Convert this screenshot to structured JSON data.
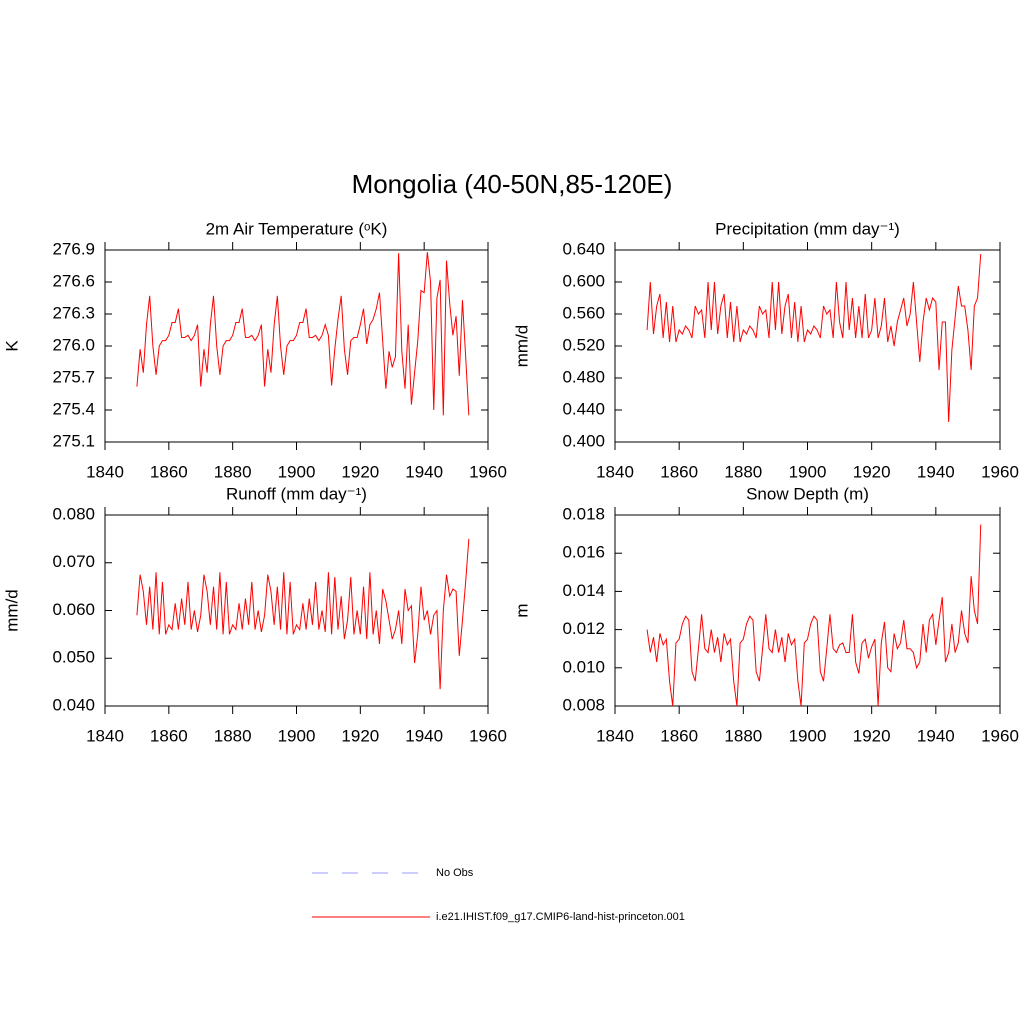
{
  "title": "Mongolia (40-50N,85-120E)",
  "legend": [
    {
      "name": "No Obs",
      "color": "#9999ff",
      "dash": true
    },
    {
      "name": "i.e21.IHIST.f09_g17.CMIP6-land-hist-princeton.001",
      "color": "#ff0000",
      "dash": false
    }
  ],
  "chart_data": [
    {
      "type": "line",
      "title": "2m Air Temperature (ᵒK)",
      "y_label": "K",
      "color": "#ff0000",
      "x": [
        1850,
        1851,
        1852,
        1853,
        1854,
        1855,
        1856,
        1857,
        1858,
        1859,
        1860,
        1861,
        1862,
        1863,
        1864,
        1865,
        1866,
        1867,
        1868,
        1869,
        1870,
        1871,
        1872,
        1873,
        1874,
        1875,
        1876,
        1877,
        1878,
        1879,
        1880,
        1881,
        1882,
        1883,
        1884,
        1885,
        1886,
        1887,
        1888,
        1889,
        1890,
        1891,
        1892,
        1893,
        1894,
        1895,
        1896,
        1897,
        1898,
        1899,
        1900,
        1901,
        1902,
        1903,
        1904,
        1905,
        1906,
        1907,
        1908,
        1909,
        1910,
        1911,
        1912,
        1913,
        1914,
        1915,
        1916,
        1917,
        1918,
        1919,
        1920,
        1921,
        1922,
        1923,
        1924,
        1925,
        1926,
        1927,
        1928,
        1929,
        1930,
        1931,
        1932,
        1933,
        1934,
        1935,
        1936,
        1937,
        1938,
        1939,
        1940,
        1941,
        1942,
        1943,
        1944,
        1945,
        1946,
        1947,
        1948,
        1949,
        1950,
        1951,
        1952,
        1953,
        1954
      ],
      "values": [
        275.62,
        275.97,
        275.75,
        276.2,
        276.47,
        276.0,
        275.73,
        276.0,
        276.05,
        276.05,
        276.1,
        276.22,
        276.22,
        276.35,
        276.08,
        276.08,
        276.1,
        276.05,
        276.1,
        276.2,
        275.62,
        275.97,
        275.75,
        276.2,
        276.47,
        276.0,
        275.73,
        276.0,
        276.05,
        276.05,
        276.1,
        276.22,
        276.22,
        276.35,
        276.08,
        276.08,
        276.1,
        276.05,
        276.1,
        276.2,
        275.62,
        275.97,
        275.75,
        276.2,
        276.47,
        276.0,
        275.73,
        276.0,
        276.05,
        276.05,
        276.1,
        276.22,
        276.22,
        276.35,
        276.08,
        276.08,
        276.1,
        276.05,
        276.1,
        276.2,
        276.1,
        275.63,
        275.97,
        276.25,
        276.47,
        275.97,
        275.73,
        276.05,
        276.08,
        276.08,
        276.2,
        276.35,
        276.02,
        276.2,
        276.25,
        276.35,
        276.5,
        276.05,
        275.6,
        275.95,
        275.8,
        275.9,
        276.87,
        275.95,
        275.6,
        276.2,
        275.45,
        275.75,
        276.05,
        276.52,
        276.5,
        276.88,
        276.6,
        275.4,
        276.45,
        276.62,
        275.35,
        276.8,
        276.4,
        276.1,
        276.28,
        275.72,
        276.43,
        275.9,
        275.35
      ],
      "xlim": [
        1840,
        1960
      ],
      "xticks": [
        1840,
        1860,
        1880,
        1900,
        1920,
        1940,
        1960
      ],
      "ylim": [
        275.1,
        276.9
      ],
      "yticks": [
        275.1,
        275.4,
        275.7,
        {
          "value": 276.0,
          "label": "276.0"
        },
        276.3,
        276.6,
        276.9
      ]
    },
    {
      "type": "line",
      "title": "Precipitation (mm day⁻¹)",
      "y_label": "mm/d",
      "color": "#ff0000",
      "x": [
        1850,
        1851,
        1852,
        1853,
        1854,
        1855,
        1856,
        1857,
        1858,
        1859,
        1860,
        1861,
        1862,
        1863,
        1864,
        1865,
        1866,
        1867,
        1868,
        1869,
        1870,
        1871,
        1872,
        1873,
        1874,
        1875,
        1876,
        1877,
        1878,
        1879,
        1880,
        1881,
        1882,
        1883,
        1884,
        1885,
        1886,
        1887,
        1888,
        1889,
        1890,
        1891,
        1892,
        1893,
        1894,
        1895,
        1896,
        1897,
        1898,
        1899,
        1900,
        1901,
        1902,
        1903,
        1904,
        1905,
        1906,
        1907,
        1908,
        1909,
        1910,
        1911,
        1912,
        1913,
        1914,
        1915,
        1916,
        1917,
        1918,
        1919,
        1920,
        1921,
        1922,
        1923,
        1924,
        1925,
        1926,
        1927,
        1928,
        1929,
        1930,
        1931,
        1932,
        1933,
        1934,
        1935,
        1936,
        1937,
        1938,
        1939,
        1940,
        1941,
        1942,
        1943,
        1944,
        1945,
        1946,
        1947,
        1948,
        1949,
        1950,
        1951,
        1952,
        1953,
        1954
      ],
      "values": [
        0.54,
        0.6,
        0.535,
        0.57,
        0.585,
        0.53,
        0.575,
        0.525,
        0.57,
        0.525,
        0.54,
        0.535,
        0.545,
        0.54,
        0.53,
        0.57,
        0.56,
        0.565,
        0.53,
        0.6,
        0.54,
        0.6,
        0.535,
        0.57,
        0.585,
        0.53,
        0.575,
        0.525,
        0.57,
        0.525,
        0.54,
        0.535,
        0.545,
        0.54,
        0.53,
        0.57,
        0.56,
        0.565,
        0.53,
        0.6,
        0.54,
        0.6,
        0.535,
        0.57,
        0.585,
        0.53,
        0.575,
        0.525,
        0.57,
        0.525,
        0.54,
        0.535,
        0.545,
        0.54,
        0.53,
        0.57,
        0.56,
        0.565,
        0.53,
        0.6,
        0.55,
        0.53,
        0.6,
        0.54,
        0.58,
        0.53,
        0.57,
        0.53,
        0.585,
        0.53,
        0.54,
        0.58,
        0.53,
        0.545,
        0.58,
        0.525,
        0.545,
        0.52,
        0.55,
        0.565,
        0.58,
        0.545,
        0.56,
        0.6,
        0.55,
        0.5,
        0.55,
        0.58,
        0.565,
        0.58,
        0.575,
        0.49,
        0.55,
        0.55,
        0.425,
        0.515,
        0.555,
        0.595,
        0.57,
        0.57,
        0.54,
        0.49,
        0.57,
        0.58,
        0.635
      ],
      "xlim": [
        1840,
        1960
      ],
      "xticks": [
        1840,
        1860,
        1880,
        1900,
        1920,
        1940,
        1960
      ],
      "ylim": [
        0.4,
        0.64
      ],
      "yticks": [
        {
          "value": 0.4,
          "label": "0.400"
        },
        {
          "value": 0.44,
          "label": "0.440"
        },
        {
          "value": 0.48,
          "label": "0.480"
        },
        {
          "value": 0.52,
          "label": "0.520"
        },
        {
          "value": 0.56,
          "label": "0.560"
        },
        {
          "value": 0.6,
          "label": "0.600"
        },
        {
          "value": 0.64,
          "label": "0.640"
        }
      ]
    },
    {
      "type": "line",
      "title": "Runoff (mm day⁻¹)",
      "y_label": "mm/d",
      "color": "#ff0000",
      "x": [
        1850,
        1851,
        1852,
        1853,
        1854,
        1855,
        1856,
        1857,
        1858,
        1859,
        1860,
        1861,
        1862,
        1863,
        1864,
        1865,
        1866,
        1867,
        1868,
        1869,
        1870,
        1871,
        1872,
        1873,
        1874,
        1875,
        1876,
        1877,
        1878,
        1879,
        1880,
        1881,
        1882,
        1883,
        1884,
        1885,
        1886,
        1887,
        1888,
        1889,
        1890,
        1891,
        1892,
        1893,
        1894,
        1895,
        1896,
        1897,
        1898,
        1899,
        1900,
        1901,
        1902,
        1903,
        1904,
        1905,
        1906,
        1907,
        1908,
        1909,
        1910,
        1911,
        1912,
        1913,
        1914,
        1915,
        1916,
        1917,
        1918,
        1919,
        1920,
        1921,
        1922,
        1923,
        1924,
        1925,
        1926,
        1927,
        1928,
        1929,
        1930,
        1931,
        1932,
        1933,
        1934,
        1935,
        1936,
        1937,
        1938,
        1939,
        1940,
        1941,
        1942,
        1943,
        1944,
        1945,
        1946,
        1947,
        1948,
        1949,
        1950,
        1951,
        1952,
        1953,
        1954
      ],
      "values": [
        0.059,
        0.0675,
        0.064,
        0.057,
        0.065,
        0.056,
        0.068,
        0.055,
        0.066,
        0.055,
        0.057,
        0.056,
        0.0615,
        0.056,
        0.0625,
        0.057,
        0.066,
        0.056,
        0.06,
        0.0555,
        0.059,
        0.0675,
        0.064,
        0.057,
        0.065,
        0.056,
        0.068,
        0.055,
        0.066,
        0.055,
        0.057,
        0.056,
        0.0615,
        0.056,
        0.0625,
        0.057,
        0.066,
        0.056,
        0.06,
        0.0555,
        0.059,
        0.0675,
        0.064,
        0.057,
        0.065,
        0.056,
        0.068,
        0.055,
        0.066,
        0.055,
        0.057,
        0.056,
        0.0615,
        0.056,
        0.0625,
        0.057,
        0.066,
        0.056,
        0.06,
        0.0555,
        0.068,
        0.055,
        0.067,
        0.056,
        0.063,
        0.054,
        0.058,
        0.067,
        0.055,
        0.06,
        0.055,
        0.065,
        0.054,
        0.068,
        0.055,
        0.06,
        0.053,
        0.0645,
        0.062,
        0.058,
        0.054,
        0.056,
        0.06,
        0.053,
        0.0645,
        0.06,
        0.061,
        0.049,
        0.055,
        0.065,
        0.058,
        0.06,
        0.055,
        0.059,
        0.06,
        0.0435,
        0.06,
        0.0675,
        0.063,
        0.0645,
        0.064,
        0.0505,
        0.058,
        0.066,
        0.075
      ],
      "xlim": [
        1840,
        1960
      ],
      "xticks": [
        1840,
        1860,
        1880,
        1900,
        1920,
        1940,
        1960
      ],
      "ylim": [
        0.04,
        0.08
      ],
      "yticks": [
        {
          "value": 0.04,
          "label": "0.040"
        },
        {
          "value": 0.05,
          "label": "0.050"
        },
        {
          "value": 0.06,
          "label": "0.060"
        },
        {
          "value": 0.07,
          "label": "0.070"
        },
        {
          "value": 0.08,
          "label": "0.080"
        }
      ]
    },
    {
      "type": "line",
      "title": "Snow Depth (m)",
      "y_label": "m",
      "color": "#ff0000",
      "x": [
        1850,
        1851,
        1852,
        1853,
        1854,
        1855,
        1856,
        1857,
        1858,
        1859,
        1860,
        1861,
        1862,
        1863,
        1864,
        1865,
        1866,
        1867,
        1868,
        1869,
        1870,
        1871,
        1872,
        1873,
        1874,
        1875,
        1876,
        1877,
        1878,
        1879,
        1880,
        1881,
        1882,
        1883,
        1884,
        1885,
        1886,
        1887,
        1888,
        1889,
        1890,
        1891,
        1892,
        1893,
        1894,
        1895,
        1896,
        1897,
        1898,
        1899,
        1900,
        1901,
        1902,
        1903,
        1904,
        1905,
        1906,
        1907,
        1908,
        1909,
        1910,
        1911,
        1912,
        1913,
        1914,
        1915,
        1916,
        1917,
        1918,
        1919,
        1920,
        1921,
        1922,
        1923,
        1924,
        1925,
        1926,
        1927,
        1928,
        1929,
        1930,
        1931,
        1932,
        1933,
        1934,
        1935,
        1936,
        1937,
        1938,
        1939,
        1940,
        1941,
        1942,
        1943,
        1944,
        1945,
        1946,
        1947,
        1948,
        1949,
        1950,
        1951,
        1952,
        1953,
        1954
      ],
      "values": [
        0.012,
        0.0108,
        0.0116,
        0.0103,
        0.0118,
        0.0112,
        0.0115,
        0.0093,
        0.008,
        0.0113,
        0.0115,
        0.0123,
        0.0127,
        0.0125,
        0.0098,
        0.0093,
        0.011,
        0.0128,
        0.011,
        0.0108,
        0.012,
        0.0108,
        0.0116,
        0.0103,
        0.0118,
        0.0112,
        0.0115,
        0.0093,
        0.008,
        0.0113,
        0.0115,
        0.0123,
        0.0127,
        0.0125,
        0.0098,
        0.0093,
        0.011,
        0.0128,
        0.011,
        0.0108,
        0.012,
        0.0108,
        0.0116,
        0.0103,
        0.0118,
        0.0112,
        0.0115,
        0.0093,
        0.008,
        0.0113,
        0.0115,
        0.0123,
        0.0127,
        0.0125,
        0.0098,
        0.0093,
        0.011,
        0.0128,
        0.011,
        0.0108,
        0.0112,
        0.0113,
        0.0108,
        0.0108,
        0.0128,
        0.0103,
        0.0097,
        0.0113,
        0.0115,
        0.0105,
        0.0111,
        0.0115,
        0.008,
        0.0113,
        0.0124,
        0.01,
        0.0098,
        0.0118,
        0.011,
        0.0113,
        0.0125,
        0.011,
        0.011,
        0.0108,
        0.01,
        0.0103,
        0.0123,
        0.0108,
        0.0125,
        0.0128,
        0.0112,
        0.0125,
        0.0137,
        0.0103,
        0.0108,
        0.0123,
        0.0108,
        0.0113,
        0.013,
        0.0118,
        0.0113,
        0.0148,
        0.013,
        0.0123,
        0.0175
      ],
      "xlim": [
        1840,
        1960
      ],
      "xticks": [
        1840,
        1860,
        1880,
        1900,
        1920,
        1940,
        1960
      ],
      "ylim": [
        0.008,
        0.018
      ],
      "yticks": [
        {
          "value": 0.008,
          "label": "0.008"
        },
        {
          "value": 0.01,
          "label": "0.010"
        },
        {
          "value": 0.012,
          "label": "0.012"
        },
        {
          "value": 0.014,
          "label": "0.014"
        },
        {
          "value": 0.016,
          "label": "0.016"
        },
        {
          "value": 0.018,
          "label": "0.018"
        }
      ]
    }
  ]
}
